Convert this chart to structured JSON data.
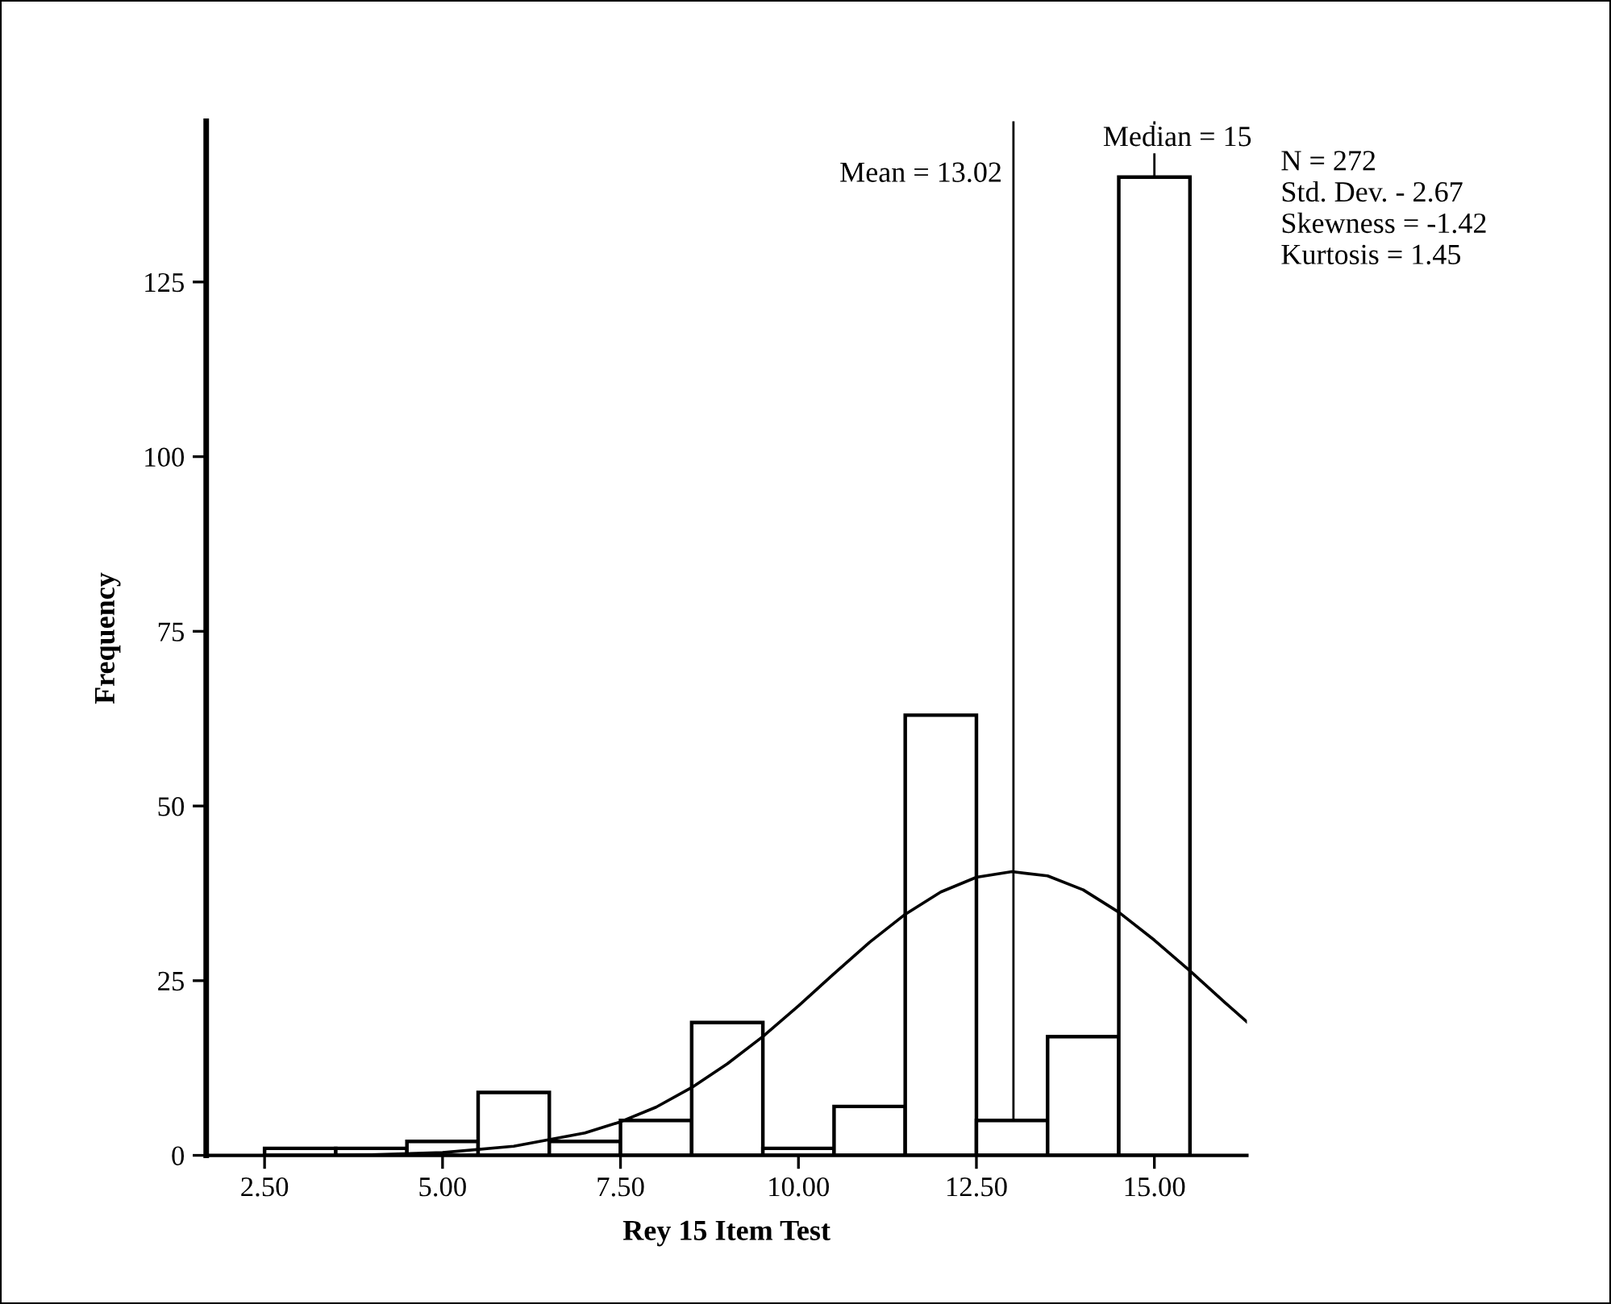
{
  "chart_data": {
    "type": "histogram",
    "xlabel": "Rey 15 Item Test",
    "ylabel": "Frequency",
    "bins": [
      2.5,
      3.5,
      4.5,
      5.5,
      6.5,
      7.5,
      8.5,
      9.5,
      10.5,
      11.5,
      12.5,
      13.5,
      14.5,
      15.5
    ],
    "values": [
      1,
      1,
      2,
      9,
      2,
      5,
      19,
      1,
      7,
      63,
      5,
      17,
      140
    ],
    "color": "#ffffff",
    "series": [
      {
        "type": "line",
        "color": "#000000",
        "x": [
          3.5,
          4,
          5,
          6,
          7,
          7.5,
          8,
          8.5,
          9,
          9.5,
          10,
          10.5,
          11,
          11.5,
          12,
          12.5,
          13,
          13.5,
          14,
          14.5,
          15,
          15.5,
          16,
          16.3
        ],
        "values": [
          0,
          0.1,
          0.4,
          1.3,
          3.2,
          4.8,
          6.9,
          9.7,
          13.1,
          17,
          21.4,
          26,
          30.5,
          34.5,
          37.7,
          39.8,
          40.6,
          40,
          38,
          34.8,
          30.8,
          26.4,
          21.8,
          19.1
        ]
      }
    ],
    "xlim": [
      1.68,
      16.3
    ],
    "ylim": [
      0,
      148
    ],
    "xticks": [
      {
        "value": 2.5,
        "label": "2.50"
      },
      {
        "value": 5,
        "label": "5.00"
      },
      {
        "value": 7.5,
        "label": "7.50"
      },
      {
        "value": 10,
        "label": "10.00"
      },
      {
        "value": 12.5,
        "label": "12.50"
      },
      {
        "value": 15,
        "label": "15.00"
      }
    ],
    "yticks": [
      0,
      25,
      50,
      75,
      100,
      125
    ],
    "ref_lines": [
      {
        "axis": "x",
        "value": 13.02,
        "label": "Mean = 13.02",
        "color": "#000000"
      },
      {
        "axis": "x",
        "value": 15,
        "label": "Median = 15",
        "color": "#000000"
      }
    ],
    "annotations": [
      "N = 272",
      "Std. Dev. - 2.67",
      "Skewness = -1.42",
      "Kurtosis = 1.45"
    ]
  }
}
